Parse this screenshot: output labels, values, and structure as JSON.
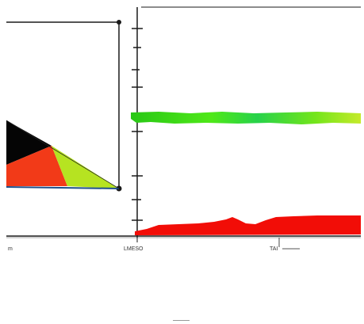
{
  "axis_labels": {
    "left_tick": "m",
    "center_tick": "LMESO",
    "right_tick": "TAI",
    "bottom_caption": "———"
  },
  "colors": {
    "frame": "#1a1a1a",
    "background": "#ffffff",
    "triangle_black": "#050505",
    "triangle_red": "#f23a18",
    "triangle_yellow": "#b6e321",
    "band_green": "#3fe012",
    "band_red": "#f20d07"
  },
  "triangle_regions": [
    {
      "name": "black",
      "color_key": "triangle_black"
    },
    {
      "name": "red",
      "color_key": "triangle_red"
    },
    {
      "name": "yellow-green",
      "color_key": "triangle_yellow"
    }
  ],
  "bands": [
    {
      "name": "green-band",
      "color_key": "band_green"
    },
    {
      "name": "red-band",
      "color_key": "band_red"
    }
  ]
}
